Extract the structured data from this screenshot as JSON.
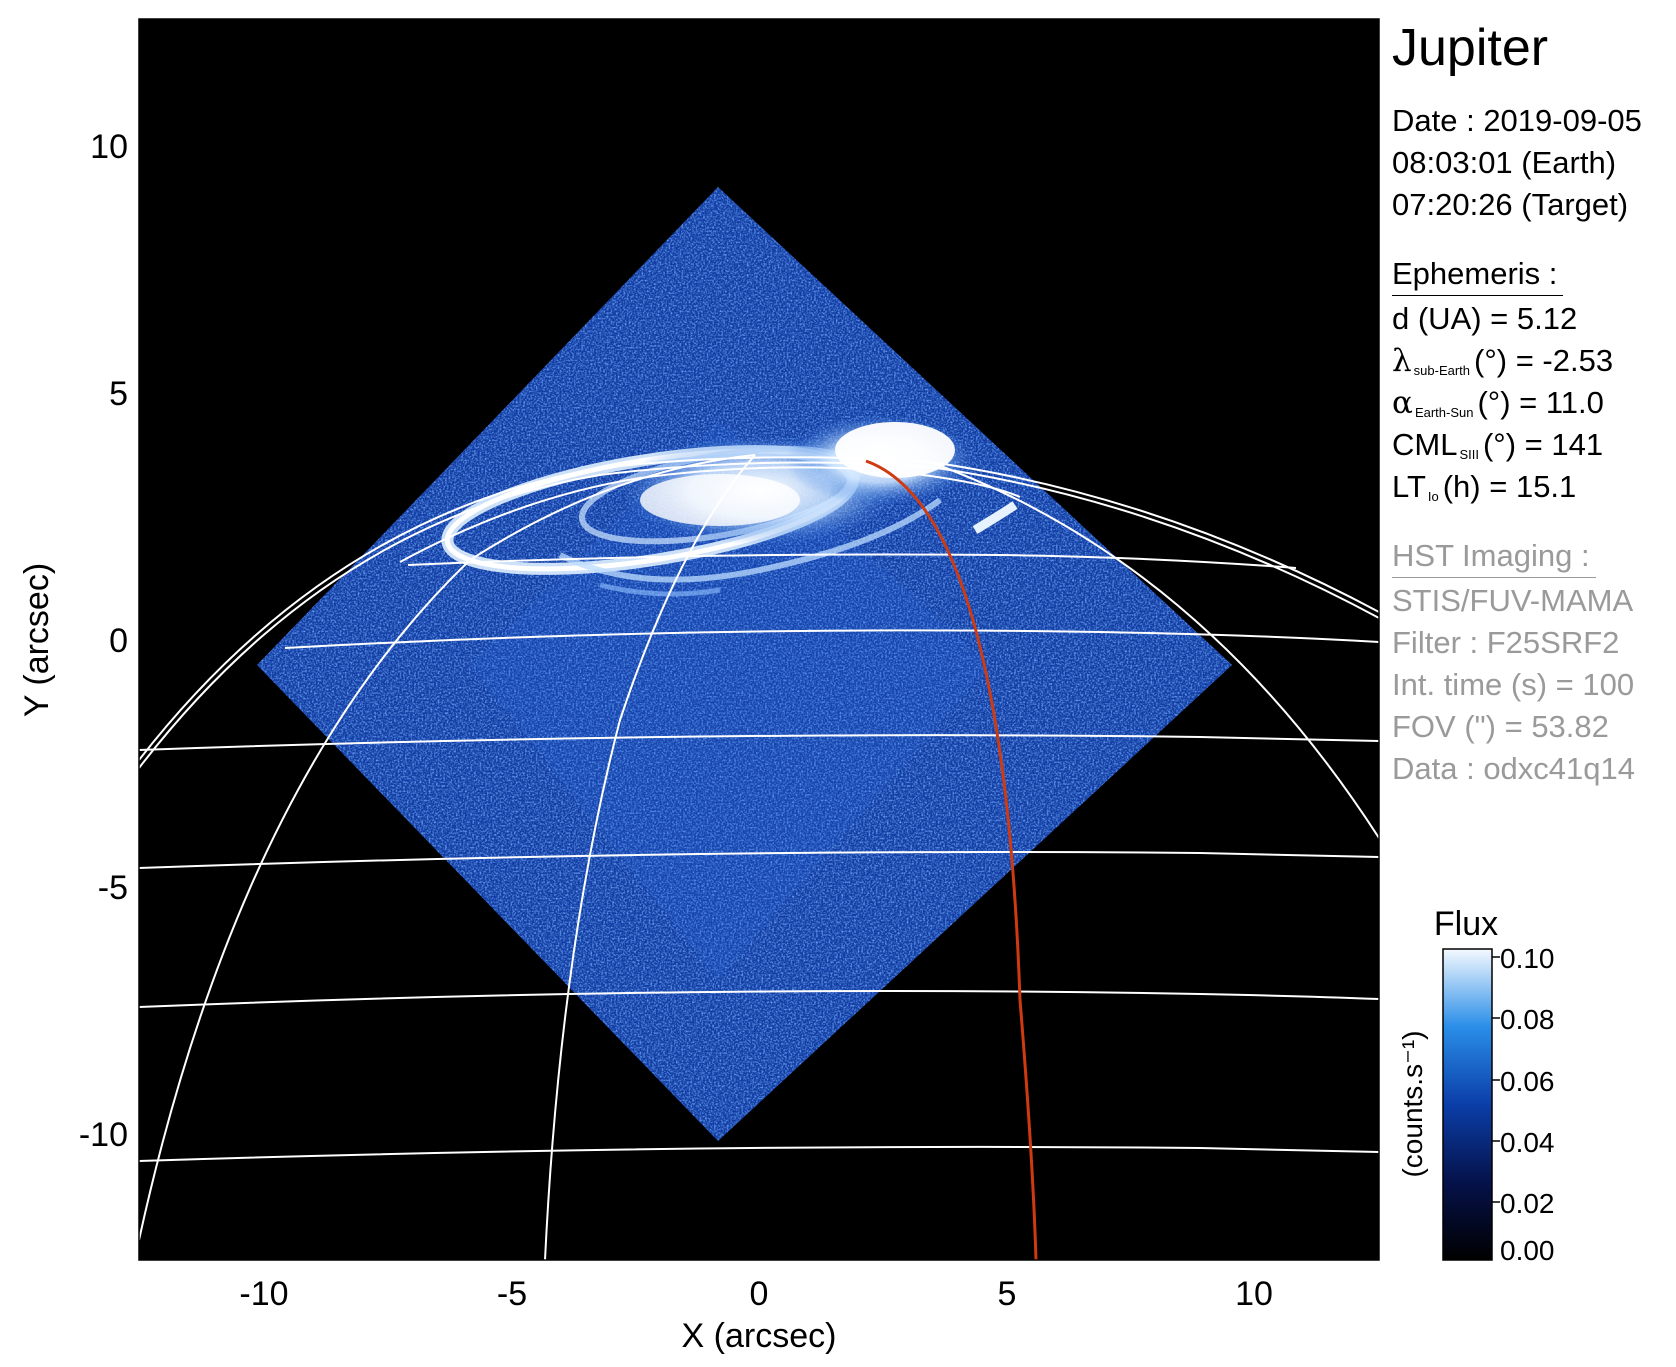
{
  "plot": {
    "xlabel": "X (arcsec)",
    "ylabel": "Y (arcsec)",
    "xlim": [
      -12.5,
      12.5
    ],
    "ylim": [
      -12.5,
      12.5
    ],
    "xticks": [
      "-10",
      "-5",
      "0",
      "5",
      "10"
    ],
    "yticks": [
      "10",
      "5",
      "0",
      "-5",
      "-10"
    ],
    "background": "#000000",
    "grid_color": "#ffffff",
    "track_color": "#d03a10"
  },
  "info": {
    "planet": "Jupiter",
    "date_line": "Date : 2019-09-05",
    "earth_time": "08:03:01 (Earth)",
    "target_time": "07:20:26 (Target)",
    "ephemeris_header": "Ephemeris :",
    "distance": "d (UA)    = 5.12",
    "lambda_symbol": "λ",
    "lambda_sub": "sub-Earth",
    "lambda_rest": "(°) = -2.53",
    "alpha_symbol": "α",
    "alpha_sub": "Earth-Sun",
    "alpha_rest": "(°) = 11.0",
    "cml_main": "CML",
    "cml_sub": "SIII",
    "cml_rest": "(°) = 141",
    "lt_main": "LT",
    "lt_sub": "Io",
    "lt_rest": "(h) = 15.1",
    "hst_header": "HST Imaging :",
    "instrument": "STIS/FUV-MAMA",
    "filter": "Filter : F25SRF2",
    "int_time": "Int. time (s) = 100",
    "fov": "FOV (\") = 53.82",
    "data_id": "Data : odxc41q14"
  },
  "colorbar": {
    "title": "Flux",
    "unit_label": "(counts.s⁻¹)",
    "ticks": [
      "0.10",
      "0.08",
      "0.06",
      "0.04",
      "0.02",
      "0.00"
    ],
    "range": [
      0.0,
      0.1
    ]
  }
}
